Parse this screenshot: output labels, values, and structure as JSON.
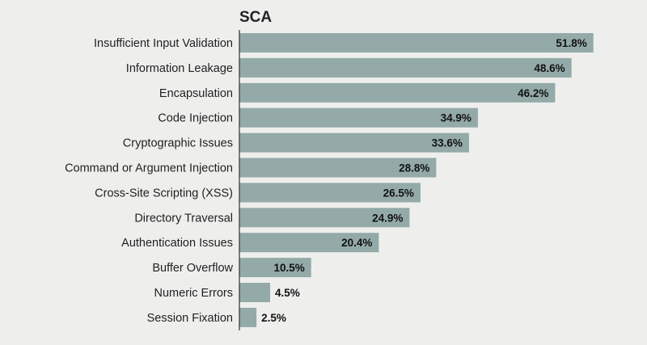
{
  "chart_data": {
    "type": "bar",
    "orientation": "horizontal",
    "title": "SCA",
    "categories": [
      "Insufficient Input Validation",
      "Information Leakage",
      "Encapsulation",
      "Code Injection",
      "Cryptographic Issues",
      "Command or Argument Injection",
      "Cross-Site Scripting (XSS)",
      "Directory Traversal",
      "Authentication Issues",
      "Buffer Overflow",
      "Numeric Errors",
      "Session Fixation"
    ],
    "values": [
      51.8,
      48.6,
      46.2,
      34.9,
      33.6,
      28.8,
      26.5,
      24.9,
      20.4,
      10.5,
      4.5,
      2.5
    ],
    "value_labels": [
      "51.8%",
      "48.6%",
      "46.2%",
      "34.9%",
      "33.6%",
      "28.8%",
      "26.5%",
      "24.9%",
      "20.4%",
      "10.5%",
      "4.5%",
      "2.5%"
    ],
    "unit": "%",
    "xlim": [
      0,
      60
    ],
    "grid": false,
    "colors": {
      "bar": "#93aaa8",
      "background": "#eeefed",
      "axis": "#333333",
      "text": "#1f1f1f"
    }
  }
}
